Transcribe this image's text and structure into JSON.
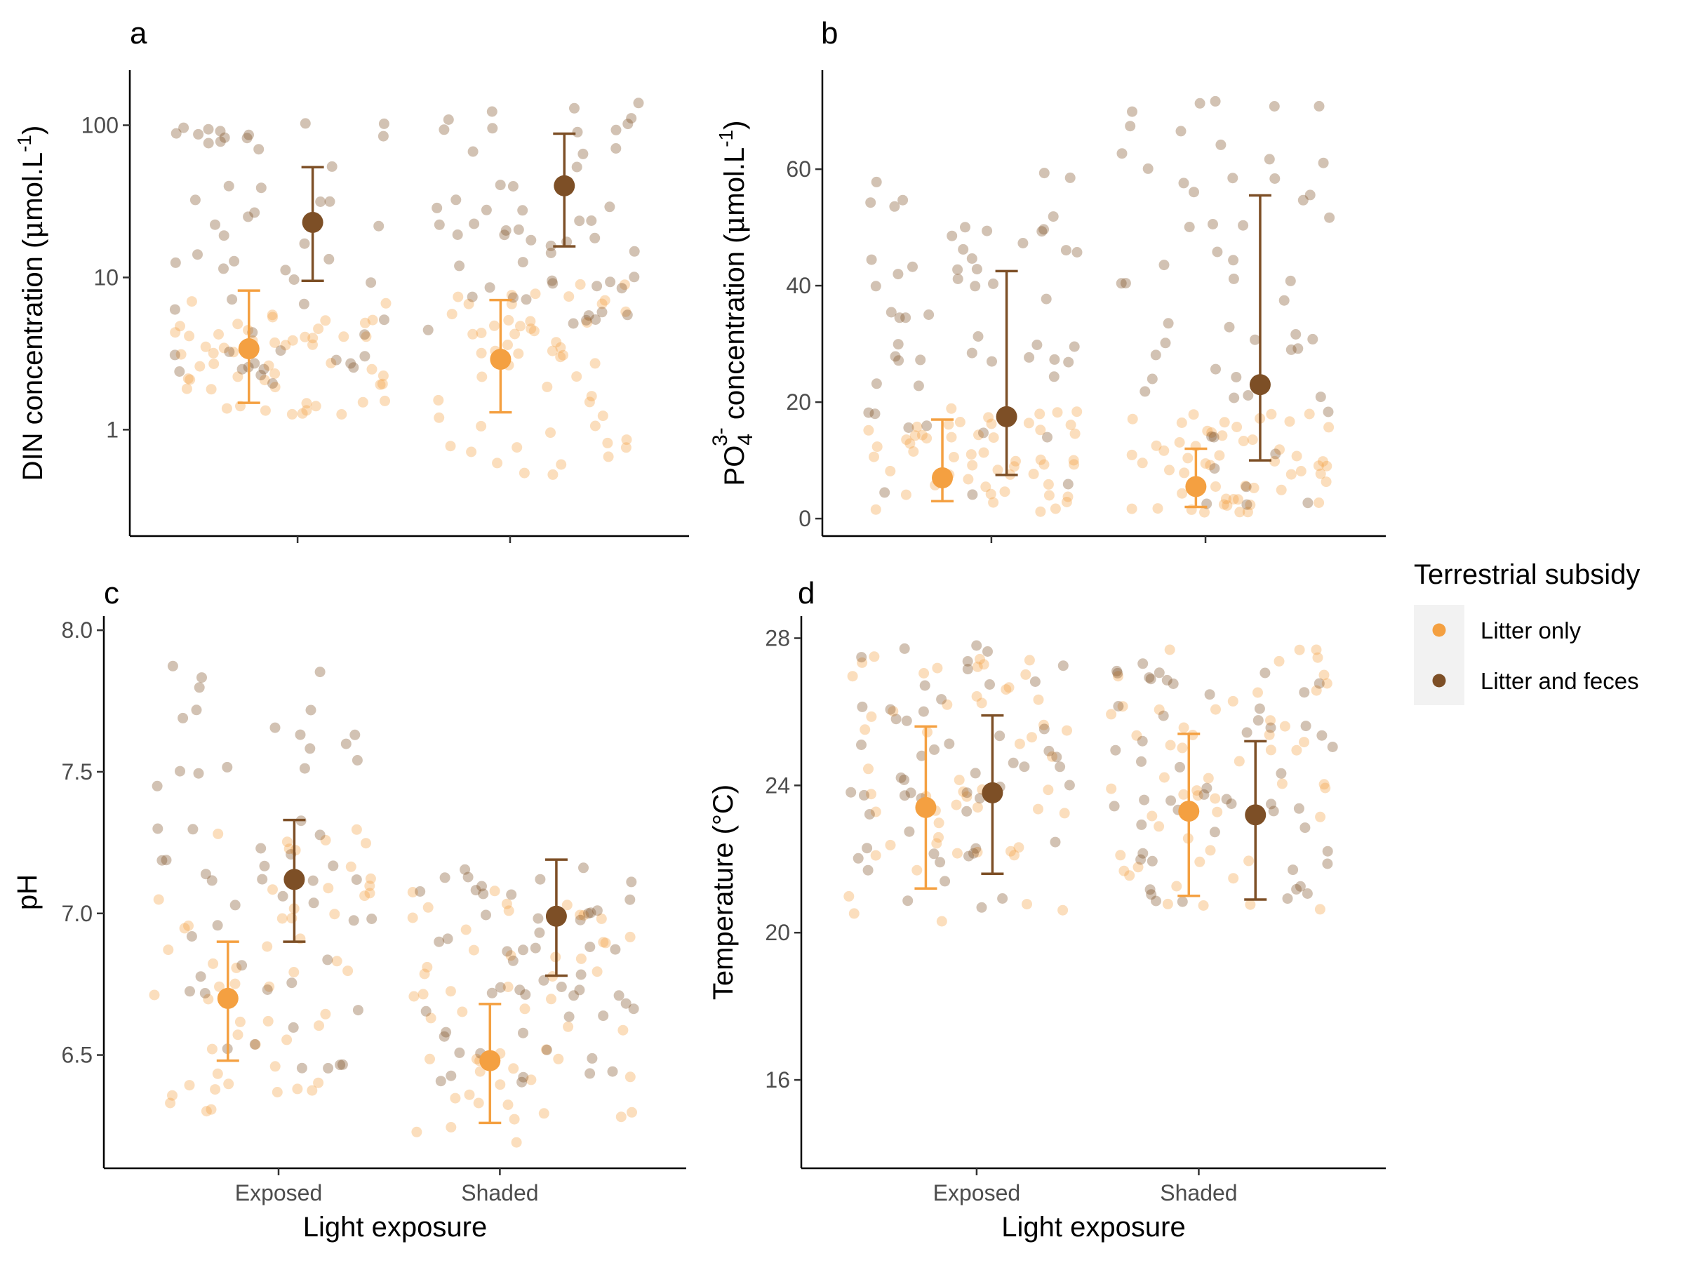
{
  "colors": {
    "litter_only": "#F4A041",
    "litter_and_feces": "#7D4F26",
    "axis": "#000000",
    "tick_label": "#4d4d4d",
    "legend_key_bg": "#f2f2f2"
  },
  "legend": {
    "title": "Terrestrial subsidy",
    "entries": [
      "Litter only",
      "Litter and feces"
    ]
  },
  "chart_data": [
    {
      "panel": "a",
      "type": "scatter",
      "xlabel": "",
      "ylabel": "DIN concentration (μmol.L-1)",
      "ylabel_parts": {
        "pre": "DIN concentration (",
        "mu": "μ",
        "post": "mol.L",
        "sup": "-1",
        "close": ")"
      },
      "yscale": "log",
      "ylim": [
        0.2,
        230
      ],
      "yticks": [
        1,
        10,
        100
      ],
      "ytick_labels": [
        "1",
        "10",
        "100"
      ],
      "categories": [
        "Exposed",
        "Shaded"
      ],
      "show_xtick_labels": false,
      "series": [
        {
          "name": "Litter only",
          "means": [
            3.4,
            2.9
          ],
          "lower": [
            1.5,
            1.3
          ],
          "upper": [
            8.2,
            7.1
          ]
        },
        {
          "name": "Litter and feces",
          "means": [
            23,
            40
          ],
          "lower": [
            9.5,
            16
          ],
          "upper": [
            53,
            88
          ]
        }
      ],
      "jitter_ranges": [
        [
          [
            1.2,
            7
          ],
          [
            0.5,
            9
          ]
        ],
        [
          [
            2,
            110
          ],
          [
            4,
            140
          ]
        ]
      ]
    },
    {
      "panel": "b",
      "type": "scatter",
      "xlabel": "",
      "ylabel": "PO43- concentration (μmol.L-1)",
      "ylabel_parts": {
        "pre": "PO",
        "sub": "4",
        "sup1": "3-",
        "mid": " concentration (",
        "mu": "μ",
        "post": "mol.L",
        "sup2": "-1",
        "close": ")"
      },
      "yscale": "linear",
      "ylim": [
        -3,
        77
      ],
      "yticks": [
        0,
        20,
        40,
        60
      ],
      "ytick_labels": [
        "0",
        "20",
        "40",
        "60"
      ],
      "categories": [
        "Exposed",
        "Shaded"
      ],
      "show_xtick_labels": false,
      "series": [
        {
          "name": "Litter only",
          "means": [
            7,
            5.5
          ],
          "lower": [
            3,
            2
          ],
          "upper": [
            17,
            12
          ]
        },
        {
          "name": "Litter and feces",
          "means": [
            17.5,
            23
          ],
          "lower": [
            7.5,
            10
          ],
          "upper": [
            42.5,
            55.5
          ]
        }
      ],
      "jitter_ranges": [
        [
          [
            0.5,
            20
          ],
          [
            0.5,
            18
          ]
        ],
        [
          [
            1,
            60
          ],
          [
            1,
            72
          ]
        ]
      ]
    },
    {
      "panel": "c",
      "type": "scatter",
      "xlabel": "Light exposure",
      "ylabel": "pH",
      "yscale": "linear",
      "ylim": [
        6.1,
        8.05
      ],
      "yticks": [
        6.5,
        7.0,
        7.5,
        8.0
      ],
      "ytick_labels": [
        "6.5",
        "7.0",
        "7.5",
        "8.0"
      ],
      "categories": [
        "Exposed",
        "Shaded"
      ],
      "show_xtick_labels": true,
      "series": [
        {
          "name": "Litter only",
          "means": [
            6.7,
            6.48
          ],
          "lower": [
            6.48,
            6.26
          ],
          "upper": [
            6.9,
            6.68
          ]
        },
        {
          "name": "Litter and feces",
          "means": [
            7.12,
            6.99
          ],
          "lower": [
            6.9,
            6.78
          ],
          "upper": [
            7.33,
            7.19
          ]
        }
      ],
      "jitter_ranges": [
        [
          [
            6.3,
            7.3
          ],
          [
            6.15,
            7.1
          ]
        ],
        [
          [
            6.45,
            7.95
          ],
          [
            6.4,
            7.2
          ]
        ]
      ]
    },
    {
      "panel": "d",
      "type": "scatter",
      "xlabel": "Light exposure",
      "ylabel": "Temperature (°C)",
      "yscale": "linear",
      "ylim": [
        13.6,
        28.6
      ],
      "yticks": [
        16,
        20,
        24,
        28
      ],
      "ytick_labels": [
        "16",
        "20",
        "24",
        "28"
      ],
      "categories": [
        "Exposed",
        "Shaded"
      ],
      "show_xtick_labels": true,
      "series": [
        {
          "name": "Litter only",
          "means": [
            23.4,
            23.3
          ],
          "lower": [
            21.2,
            21.0
          ],
          "upper": [
            25.6,
            25.4
          ]
        },
        {
          "name": "Litter and feces",
          "means": [
            23.8,
            23.2
          ],
          "lower": [
            21.6,
            20.9
          ],
          "upper": [
            25.9,
            25.2
          ]
        }
      ],
      "jitter_ranges": [
        [
          [
            20.2,
            27.5
          ],
          [
            20.3,
            27.8
          ]
        ],
        [
          [
            20.5,
            27.8
          ],
          [
            20.4,
            27.5
          ]
        ]
      ]
    }
  ]
}
